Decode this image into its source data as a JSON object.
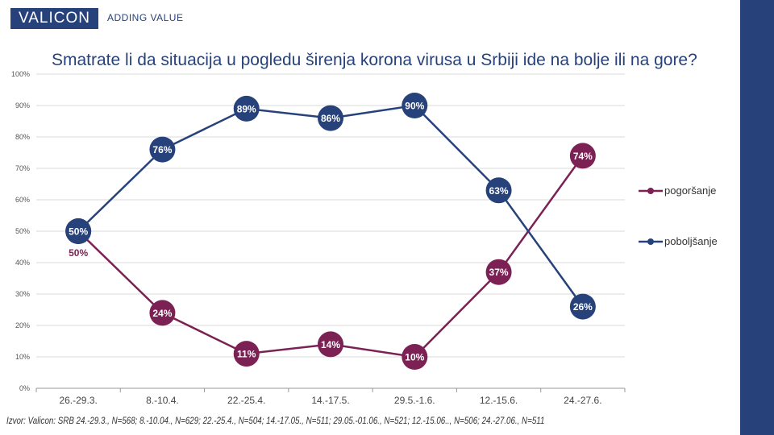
{
  "header": {
    "logo": "VALICON",
    "tagline": "ADDING VALUE"
  },
  "source": "Izvor: Valicon: SRB 24.-29.3., N=568; 8.-10.04., N=629; 22.-25.4., N=504; 14.-17.05., N=511; 29.05.-01.06., N=521; 12.-15.06.., N=506; 24.-27.06., N=511",
  "colors": {
    "brand": "#27427a",
    "pogorsanje": "#7b2154",
    "poboljsanje": "#27427a"
  },
  "chart_data": {
    "type": "line",
    "title": "Smatrate li da situacija u pogledu širenja korona virusa u Srbiji ide na bolje ili na gore?",
    "categories": [
      "26.-29.3.",
      "8.-10.4.",
      "22.-25.4.",
      "14.-17.5.",
      "29.5.-1.6.",
      "12.-15.6.",
      "24.-27.6."
    ],
    "yticks": [
      "0%",
      "10%",
      "20%",
      "30%",
      "40%",
      "50%",
      "60%",
      "70%",
      "80%",
      "90%",
      "100%"
    ],
    "ylim": [
      0,
      100
    ],
    "grid": true,
    "legend_position": "right",
    "series": [
      {
        "name": "pogoršanje",
        "values": [
          50,
          24,
          11,
          14,
          10,
          37,
          74
        ],
        "labels": [
          "50%",
          "24%",
          "11%",
          "14%",
          "10%",
          "37%",
          "74%"
        ]
      },
      {
        "name": "poboljšanje",
        "values": [
          50,
          76,
          89,
          86,
          90,
          63,
          26
        ],
        "labels": [
          "50%",
          "76%",
          "89%",
          "86%",
          "90%",
          "63%",
          "26%"
        ]
      }
    ]
  }
}
